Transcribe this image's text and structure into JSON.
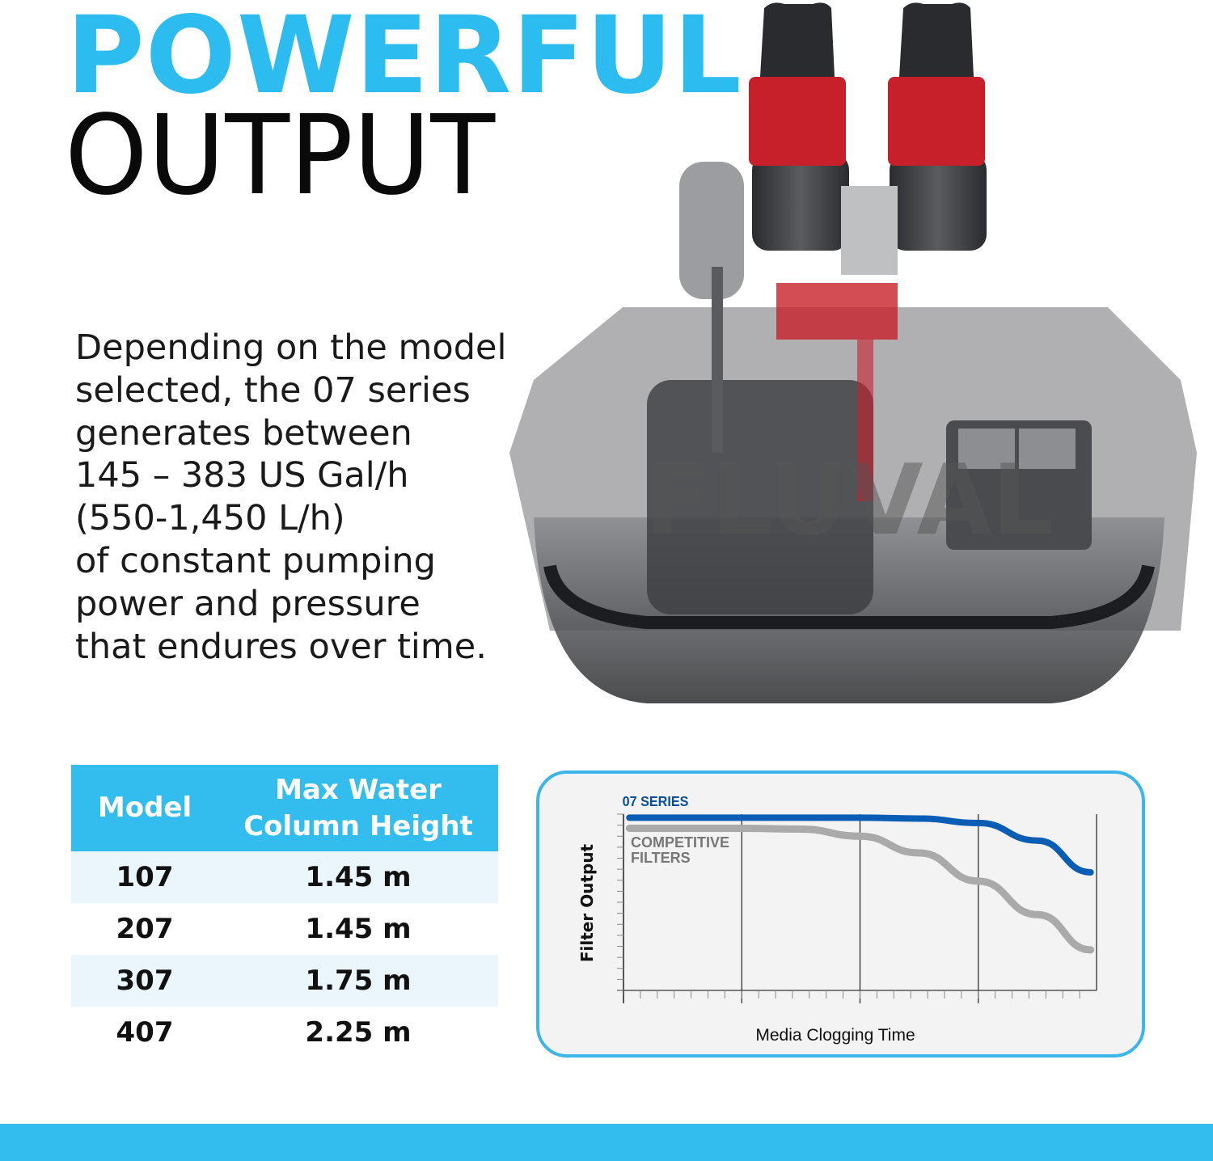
{
  "heading": {
    "line1": "POWERFUL",
    "line2": "OUTPUT"
  },
  "description": [
    "Depending on the model",
    "selected, the 07 series",
    "generates between",
    "145 – 383 US Gal/h",
    "(550-1,450 L/h)",
    "of constant pumping",
    "power and pressure",
    "that endures over time."
  ],
  "product_image": {
    "alt_text": "FLUVAL",
    "colors": {
      "body": "#3a3b3e",
      "valve": "#c8202a"
    }
  },
  "table": {
    "headers": [
      "Model",
      "Max Water\nColumn Height"
    ],
    "header_lines": [
      "Max Water",
      "Column Height"
    ],
    "rows": [
      [
        "107",
        "1.45 m"
      ],
      [
        "207",
        "1.45 m"
      ],
      [
        "307",
        "1.75 m"
      ],
      [
        "407",
        "2.25 m"
      ]
    ]
  },
  "chart_data": {
    "type": "line",
    "title": "",
    "xlabel": "Media Clogging Time",
    "ylabel": "Filter Output",
    "xlim": [
      0,
      4
    ],
    "ylim": [
      0,
      1
    ],
    "grid": "vertical",
    "series": [
      {
        "name": "07 SERIES",
        "color": "#0a5db5",
        "x": [
          0.05,
          1,
          2,
          2.5,
          3,
          3.5,
          3.95
        ],
        "y": [
          0.98,
          0.98,
          0.98,
          0.975,
          0.95,
          0.85,
          0.67
        ]
      },
      {
        "name": "COMPETITIVE\nFILTERS",
        "label_lines": [
          "COMPETITIVE",
          "FILTERS"
        ],
        "color": "#aaaaaa",
        "x": [
          0.05,
          1,
          1.5,
          2,
          2.5,
          3,
          3.5,
          3.95
        ],
        "y": [
          0.92,
          0.92,
          0.915,
          0.875,
          0.78,
          0.62,
          0.43,
          0.23
        ]
      }
    ]
  },
  "colors": {
    "accent": "#2dbcef",
    "bar": "#33bdef"
  }
}
